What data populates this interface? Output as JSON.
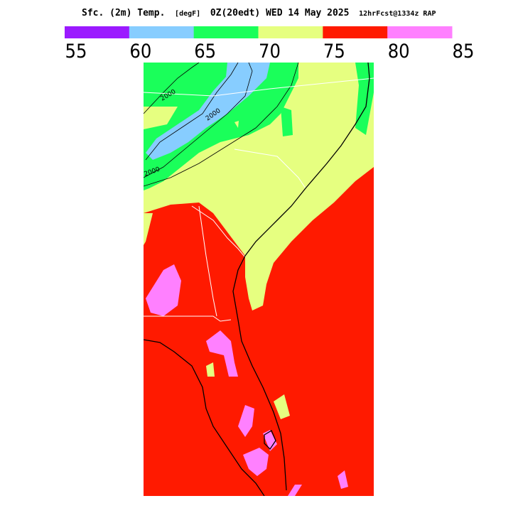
{
  "title": {
    "field": "Sfc. (2m) Temp.",
    "units": "[degF]",
    "valid": "0Z(20edt) WED 14 May 2025",
    "run": "12hrFcst@1334z RAP"
  },
  "colorbar": {
    "ticks": [
      55,
      60,
      65,
      70,
      75,
      80,
      85
    ],
    "colors": [
      "#9b1aff",
      "#87cdff",
      "#1aff5a",
      "#e6ff80",
      "#ff1a00",
      "#ff80ff"
    ]
  },
  "contour_labels": [
    "2000",
    "2000",
    "2000"
  ]
}
